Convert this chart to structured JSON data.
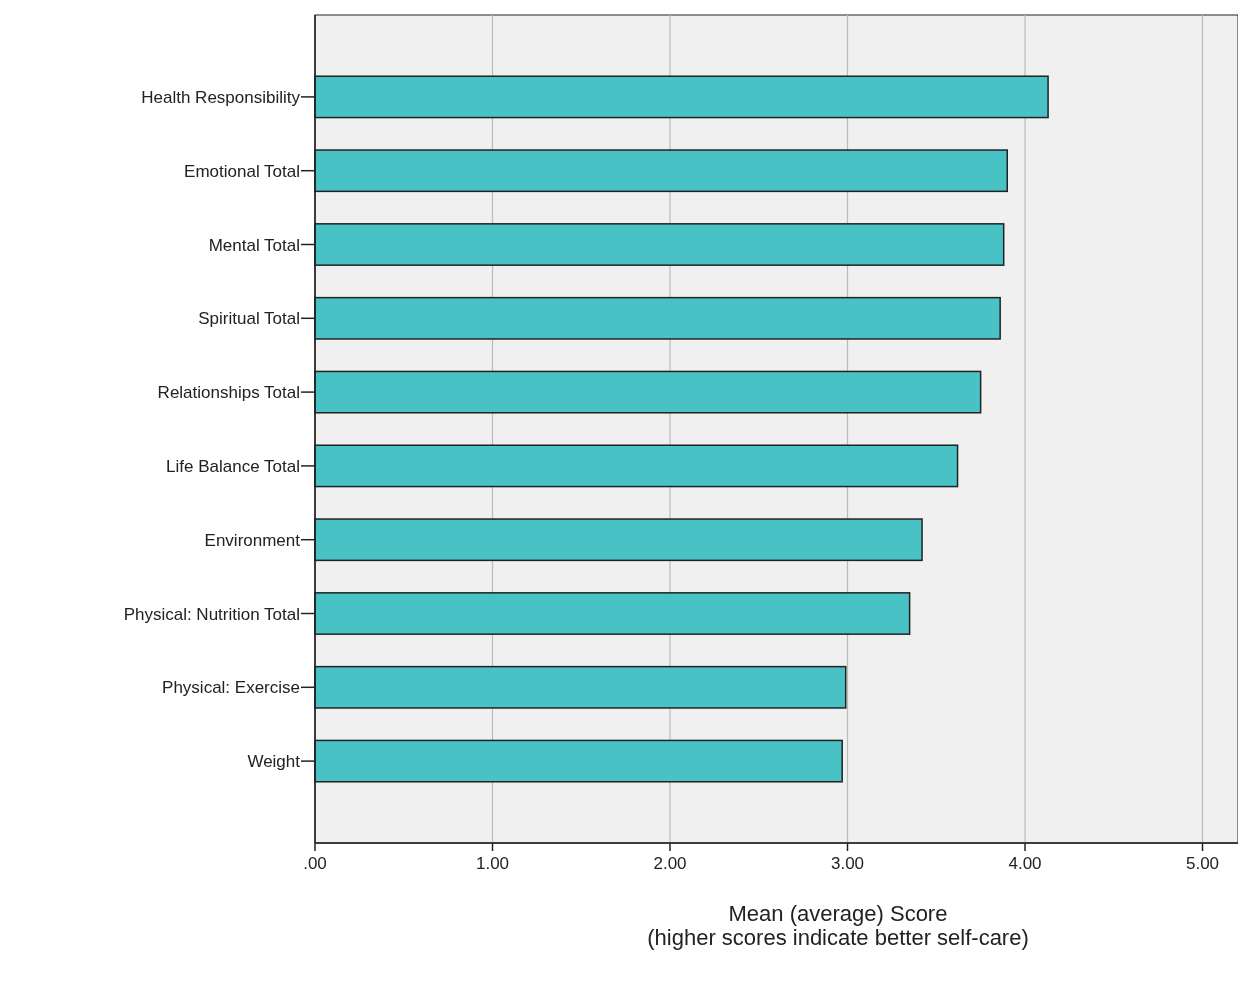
{
  "chart_data": {
    "type": "bar",
    "orientation": "horizontal",
    "categories": [
      "Health Responsibility",
      "Emotional Total",
      "Mental Total",
      "Spiritual Total",
      "Relationships Total",
      "Life Balance Total",
      "Environment",
      "Physical: Nutrition Total",
      "Physical: Exercise",
      "Weight"
    ],
    "values": [
      4.13,
      3.9,
      3.88,
      3.86,
      3.75,
      3.62,
      3.42,
      3.35,
      2.99,
      2.97
    ],
    "color": "#48c2c5",
    "xlim": [
      0,
      5.2
    ],
    "xticks": [
      {
        "value": 0,
        "label": ".00"
      },
      {
        "value": 1,
        "label": "1.00"
      },
      {
        "value": 2,
        "label": "2.00"
      },
      {
        "value": 3,
        "label": "3.00"
      },
      {
        "value": 4,
        "label": "4.00"
      },
      {
        "value": 5,
        "label": "5.00"
      }
    ],
    "xlabel": "Mean (average) Score\n(higher scores indicate better self-care)",
    "grid": "x"
  }
}
